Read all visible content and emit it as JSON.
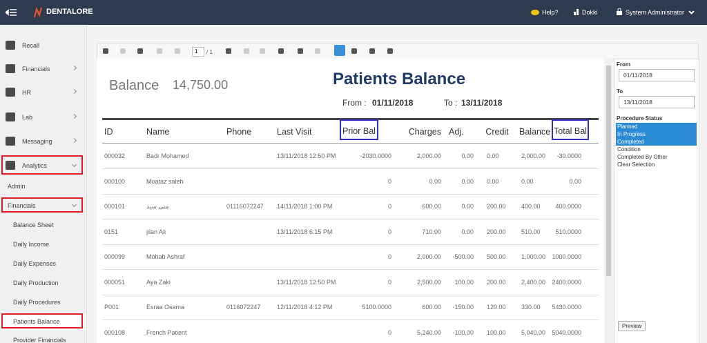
{
  "topbar": {
    "brand": "DENTALORE",
    "help": "Help?",
    "branch": "Dokki",
    "user": "System Administrator"
  },
  "sidebar": {
    "items": [
      "Recall",
      "Financials",
      "HR",
      "Lab",
      "Messaging",
      "Analytics",
      "Admin",
      "Financials",
      "Balance Sheet",
      "Daily Income",
      "Daily Expenses",
      "Daily Production",
      "Daily Procedures",
      "Patients Balance",
      "Provider Financials"
    ]
  },
  "toolbar": {
    "page": "1",
    "page_total": "/ 1"
  },
  "report": {
    "balance_label": "Balance",
    "balance_value": "14,750.00",
    "title": "Patients Balance",
    "from_label": "From :",
    "from": "01/11/2018",
    "to_label": "To :",
    "to": "13/11/2018",
    "columns": [
      "ID",
      "Name",
      "Phone",
      "Last Visit",
      "Prior Bal",
      "Charges",
      "Adj.",
      "Credit",
      "Balance",
      "Total Bal"
    ],
    "rows": [
      [
        "000032",
        "Badr Mohamed",
        "",
        "13/11/2018 12:50 PM",
        "-2030.0000",
        "2,000.00",
        "0.00",
        "0.00",
        "2,000.00",
        "-30.0000"
      ],
      [
        "000100",
        "Moataz saleh",
        "",
        "",
        "0",
        "0.00",
        "0.00",
        "0.00",
        "0.00",
        "0.00"
      ],
      [
        "000101",
        "منى سيد",
        "01116072247",
        "14/11/2018 1:00 PM",
        "0",
        "600.00",
        "0.00",
        "200.00",
        "400.00",
        "400.0000"
      ],
      [
        "0151",
        "jilan Ali",
        "",
        "13/11/2018 6:15 PM",
        "0",
        "710.00",
        "0.00",
        "200.00",
        "510.00",
        "510.0000"
      ],
      [
        "000099",
        "Mohab Ashraf",
        "",
        "",
        "0",
        "2,000.00",
        "-500.00",
        "500.00",
        "1,000.00",
        "1000.0000"
      ],
      [
        "000051",
        "Aya Zaki",
        "",
        "13/11/2018 12:50 PM",
        "0",
        "2,500.00",
        "100.00",
        "200.00",
        "2,400.00",
        "2400.0000"
      ],
      [
        "P001",
        "Esraa Osama",
        "0116072247",
        "12/11/2018 4:12 PM",
        "5100.0000",
        "600.00",
        "-150.00",
        "120.00",
        "330.00",
        "5430.0000"
      ],
      [
        "000108",
        "French Patient",
        "",
        "",
        "0",
        "5,240.00",
        "-100.00",
        "100.00",
        "5,040.00",
        "5040.0000"
      ]
    ]
  },
  "filters": {
    "from_label": "From",
    "from": "01/11/2018",
    "to_label": "To",
    "to": "13/11/2018",
    "status_label": "Procedure Status",
    "statuses": [
      {
        "label": "Planned",
        "selected": true
      },
      {
        "label": "In Progress",
        "selected": true
      },
      {
        "label": "Completed",
        "selected": true
      },
      {
        "label": "Condition",
        "selected": false
      },
      {
        "label": "Completed By Other",
        "selected": false
      }
    ],
    "clear": "Clear Selection",
    "preview": "Preview"
  }
}
